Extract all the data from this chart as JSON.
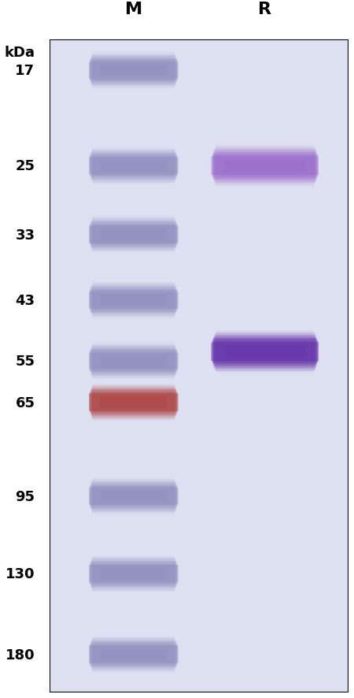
{
  "bg_color": "#dde0f0",
  "panel_bg": "#dde0f0",
  "fig_bg": "#ffffff",
  "title_M": "M",
  "title_R": "R",
  "kda_label": "kDa",
  "ladder_kda": [
    180,
    130,
    95,
    65,
    55,
    43,
    33,
    25,
    17
  ],
  "ladder_colors": [
    "#9090c0",
    "#9090c0",
    "#9090c0",
    "#b04040",
    "#9090c0",
    "#9090c0",
    "#9090c0",
    "#9090c0",
    "#9090c0"
  ],
  "sample_bands": [
    {
      "kda": 53,
      "color": "#6633aa",
      "alpha": 0.85
    },
    {
      "kda": 25,
      "color": "#9966cc",
      "alpha": 0.65
    }
  ],
  "kda_tick_labels": [
    180,
    130,
    95,
    65,
    55,
    43,
    33,
    25,
    17
  ],
  "ylim_log_min": 15,
  "ylim_log_max": 210
}
